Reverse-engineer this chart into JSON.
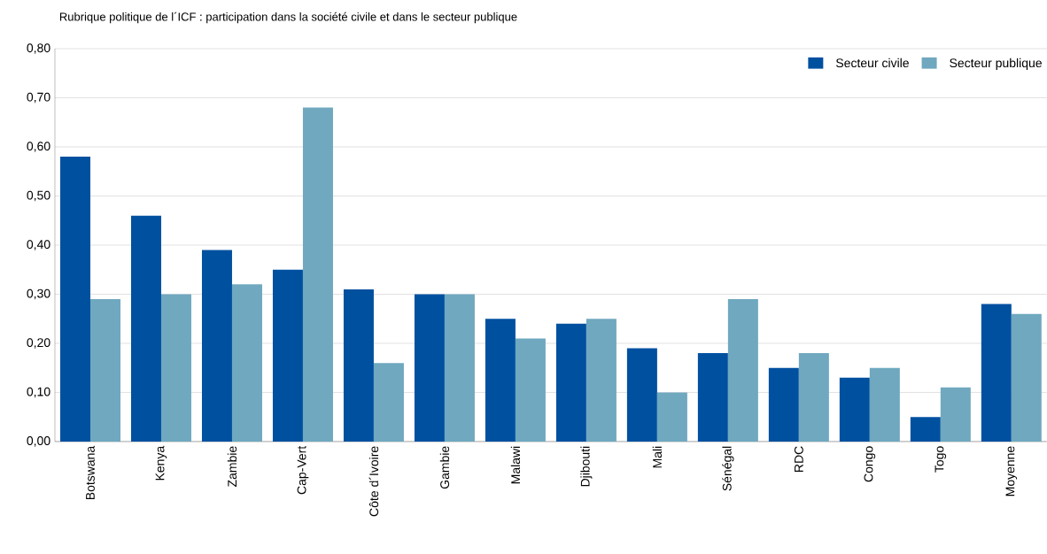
{
  "chart_data": {
    "type": "bar",
    "title": "Rubrique politique de l´ICF : participation dans la société civile et dans le secteur publique",
    "categories": [
      "Botswana",
      "Kenya",
      "Zambie",
      "Cap-Vert",
      "Côte d´Ivoire",
      "Gambie",
      "Malawi",
      "Djibouti",
      "Mali",
      "Sénégal",
      "RDC",
      "Congo",
      "Togo",
      "Moyenne"
    ],
    "series": [
      {
        "name": "Secteur civile",
        "color": "#0050a0",
        "values": [
          0.58,
          0.46,
          0.39,
          0.35,
          0.31,
          0.3,
          0.25,
          0.24,
          0.19,
          0.18,
          0.15,
          0.13,
          0.05,
          0.28
        ]
      },
      {
        "name": "Secteur publique",
        "color": "#6fa8bf",
        "values": [
          0.29,
          0.3,
          0.32,
          0.68,
          0.16,
          0.3,
          0.21,
          0.25,
          0.1,
          0.29,
          0.18,
          0.15,
          0.11,
          0.26
        ]
      }
    ],
    "ylim": [
      0,
      0.8
    ],
    "yticks": [
      {
        "value": 0,
        "label": "0,00"
      },
      {
        "value": 0.1,
        "label": "0,10"
      },
      {
        "value": 0.2,
        "label": "0,20"
      },
      {
        "value": 0.3,
        "label": "0,30"
      },
      {
        "value": 0.4,
        "label": "0,40"
      },
      {
        "value": 0.5,
        "label": "0,50"
      },
      {
        "value": 0.6,
        "label": "0,60"
      },
      {
        "value": 0.7,
        "label": "0,70"
      },
      {
        "value": 0.8,
        "label": "0,80"
      }
    ],
    "grid": "y",
    "legend": "top right"
  }
}
